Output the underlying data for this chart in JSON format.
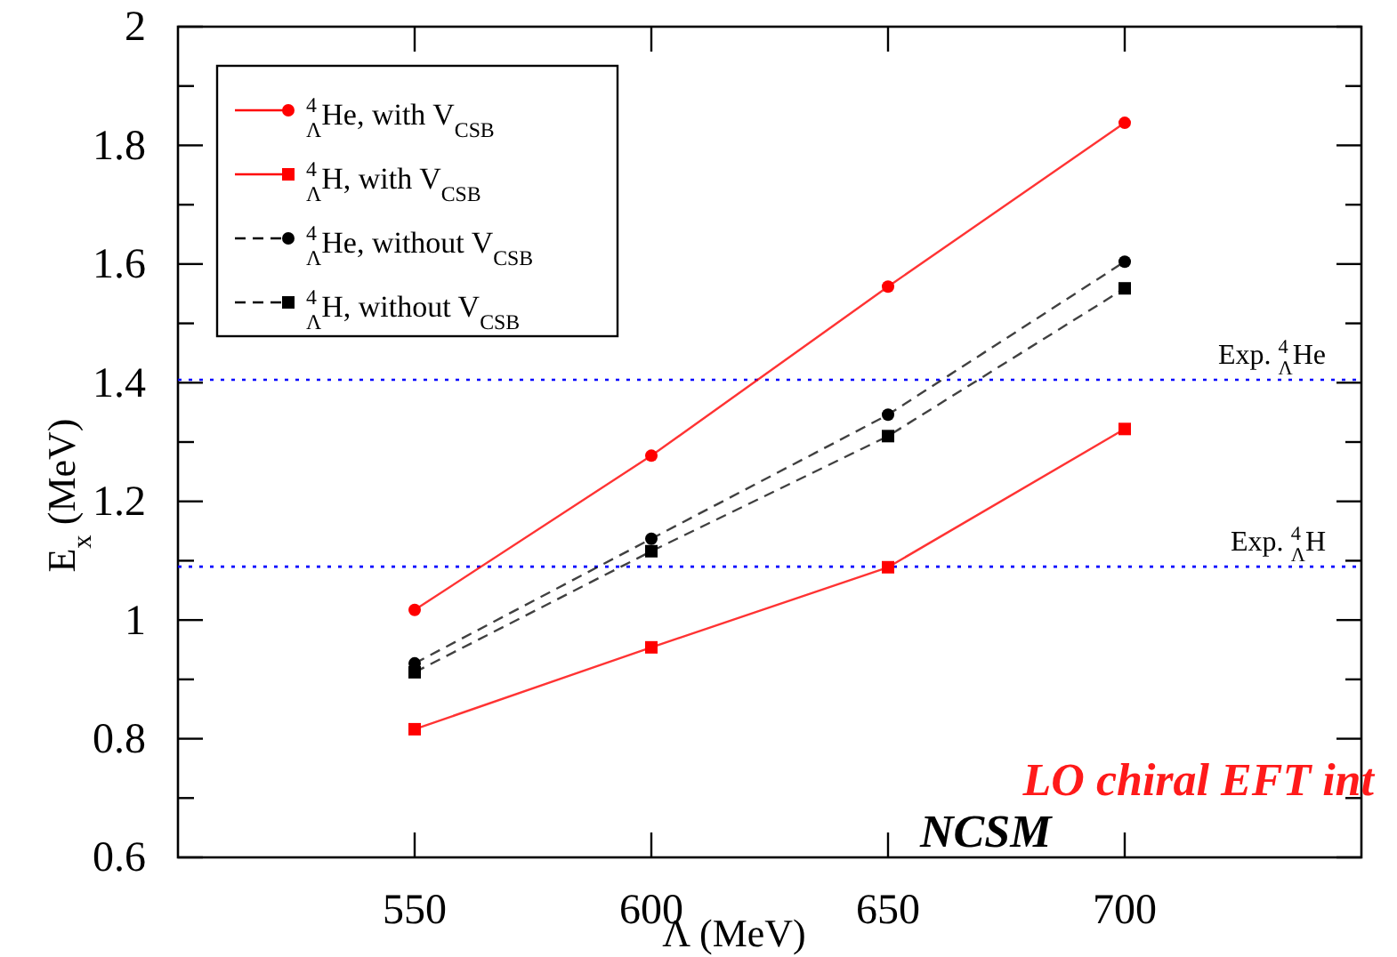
{
  "chart_data": {
    "type": "line",
    "xlabel": "Λ (MeV)",
    "ylabel": "E$_{x}$ (MeV)",
    "x": [
      550,
      600,
      650,
      700
    ],
    "series": [
      {
        "name": "$^{4}$$_{Λ}$He, with V$_{CSB}$",
        "color": "#ff0000",
        "marker": "circle",
        "line_style": "solid",
        "values": [
          1.017,
          1.277,
          1.562,
          1.838
        ]
      },
      {
        "name": "$^{4}$$_{Λ}$H, with V$_{CSB}$",
        "color": "#ff0000",
        "marker": "square",
        "line_style": "solid",
        "values": [
          0.816,
          0.954,
          1.089,
          1.322
        ]
      },
      {
        "name": "$^{4}$$_{Λ}$He, without V$_{CSB}$",
        "color": "#000000",
        "marker": "circle",
        "line_style": "dashed",
        "values": [
          0.927,
          1.137,
          1.346,
          1.604
        ]
      },
      {
        "name": "$^{4}$$_{Λ}$H, without V$_{CSB}$",
        "color": "#000000",
        "marker": "square",
        "line_style": "dashed",
        "values": [
          0.912,
          1.116,
          1.31,
          1.559
        ]
      }
    ],
    "xlim": [
      500,
      750
    ],
    "xticks": [
      550,
      600,
      650,
      700
    ],
    "ylim": [
      0.6,
      2
    ],
    "yticks": [
      0.6,
      {
        "value": 0.7,
        "label": null
      },
      0.8,
      {
        "value": 0.9,
        "label": null
      },
      1,
      {
        "value": 1.1,
        "label": null
      },
      1.2,
      {
        "value": 1.3,
        "label": null
      },
      1.4,
      {
        "value": 1.5,
        "label": null
      },
      1.6,
      {
        "value": 1.7,
        "label": null
      },
      1.8,
      {
        "value": 1.9,
        "label": null
      },
      2
    ],
    "ref_lines": [
      {
        "axis": "y",
        "value": 1.405,
        "label": "Exp. $^{4}$$_{Λ}$He",
        "color": "#0000ff",
        "line_style": "dotted"
      },
      {
        "axis": "y",
        "value": 1.09,
        "label": "Exp. $^{4}$$_{Λ}$H",
        "color": "#0000ff",
        "line_style": "dotted"
      }
    ],
    "annotations": [
      "LO chiral EFT int",
      "NCSM"
    ],
    "legend": "top left",
    "grid": false
  }
}
